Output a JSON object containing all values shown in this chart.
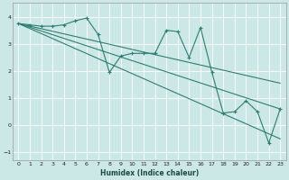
{
  "xlabel": "Humidex (Indice chaleur)",
  "xlim": [
    -0.5,
    23.5
  ],
  "ylim": [
    -1.3,
    4.5
  ],
  "yticks": [
    -1,
    0,
    1,
    2,
    3,
    4
  ],
  "xticks": [
    0,
    1,
    2,
    3,
    4,
    5,
    6,
    7,
    8,
    9,
    10,
    11,
    12,
    13,
    14,
    15,
    16,
    17,
    18,
    19,
    20,
    21,
    22,
    23
  ],
  "bg_color": "#cce8e6",
  "grid_color": "#ffffff",
  "line_color": "#2e7d72",
  "reg1_y_end": 0.6,
  "reg2_y_end": 1.55,
  "reg3_y_end": -0.5,
  "zigzag_x": [
    0,
    1,
    2,
    3,
    4,
    5,
    6,
    7,
    8,
    9,
    10,
    11,
    12,
    13,
    14,
    15,
    16,
    17,
    18,
    19,
    20,
    21,
    22,
    23
  ],
  "zigzag_y": [
    3.75,
    3.7,
    3.65,
    3.65,
    3.7,
    3.85,
    3.95,
    3.35,
    1.95,
    2.55,
    2.65,
    2.65,
    2.65,
    3.5,
    3.45,
    2.5,
    3.6,
    1.95,
    0.45,
    0.5,
    0.9,
    0.5,
    -0.65,
    0.6
  ]
}
